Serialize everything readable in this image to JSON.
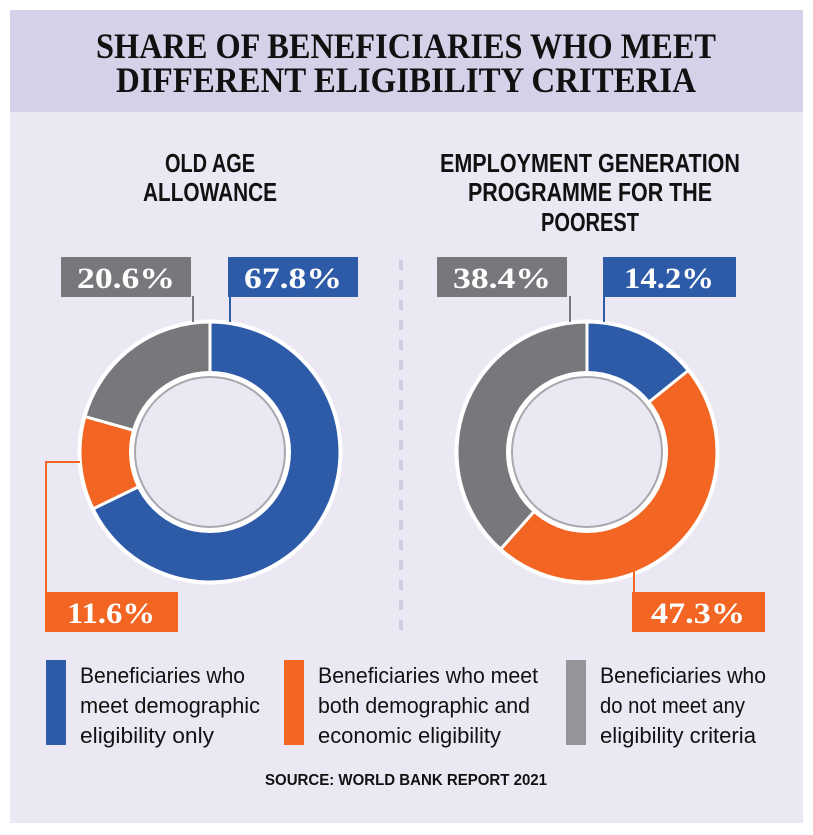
{
  "colors": {
    "blue": "#2d5ba8",
    "orange": "#f26522",
    "gray": "#77787b",
    "header_bg": "#d5d1e8",
    "body_bg": "#ebe8f4"
  },
  "chart_data": [
    {
      "type": "pie",
      "title": "OLD AGE ALLOWANCE",
      "title_lines": [
        "OLD AGE",
        "ALLOWANCE"
      ],
      "slices": [
        {
          "name": "Beneficiaries who meet demographic eligibility only",
          "value": 67.8,
          "label": "67.8%",
          "color": "#2d5ba8"
        },
        {
          "name": "Beneficiaries who meet both demographic and economic eligibility",
          "value": 11.6,
          "label": "11.6%",
          "color": "#f26522"
        },
        {
          "name": "Beneficiaries who do not meet any eligibility criteria",
          "value": 20.6,
          "label": "20.6%",
          "color": "#77787b"
        }
      ]
    },
    {
      "type": "pie",
      "title": "EMPLOYMENT GENERATION PROGRAMME FOR THE POOREST",
      "title_lines": [
        "EMPLOYMENT GENERATION",
        "PROGRAMME FOR THE",
        "POOREST"
      ],
      "slices": [
        {
          "name": "Beneficiaries who meet demographic eligibility only",
          "value": 14.2,
          "label": "14.2%",
          "color": "#2d5ba8"
        },
        {
          "name": "Beneficiaries who meet both demographic and economic eligibility",
          "value": 47.3,
          "label": "47.3%",
          "color": "#f26522"
        },
        {
          "name": "Beneficiaries who do not meet any eligibility criteria",
          "value": 38.4,
          "label": "38.4%",
          "color": "#77787b"
        }
      ]
    }
  ],
  "header": {
    "title_lines": [
      "SHARE OF BENEFICIARIES WHO MEET",
      "DIFFERENT ELIGIBILITY CRITERIA"
    ]
  },
  "legend": [
    {
      "lines": [
        "Beneficiaries who",
        "meet demographic",
        "eligibility only"
      ],
      "color": "#2d5ba8"
    },
    {
      "lines": [
        "Beneficiaries who meet",
        "both demographic and",
        "economic eligibility"
      ],
      "color": "#f26522"
    },
    {
      "lines": [
        "Beneficiaries who",
        "do not meet any",
        "eligibility criteria"
      ],
      "color": "#77787b"
    }
  ],
  "source": "SOURCE: WORLD BANK REPORT 2021"
}
